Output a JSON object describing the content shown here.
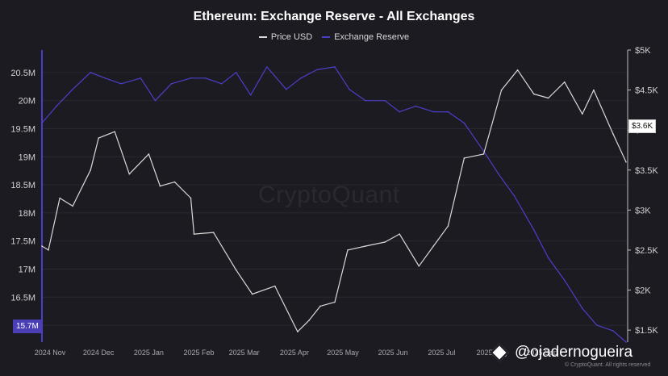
{
  "chart_data": {
    "type": "line",
    "title": "Ethereum: Exchange Reserve - All Exchanges",
    "legend": [
      "Price USD",
      "Exchange Reserve"
    ],
    "legend_placement": "top-center",
    "grid": true,
    "colors": {
      "price": "#d9d9d9",
      "reserve": "#4b3fc9",
      "background": "#1d1b22"
    },
    "x_ticks": [
      "2024 Nov",
      "2024 Dec",
      "2025 Jan",
      "2025 Feb",
      "2025 Mar",
      "2025 Apr",
      "2025 May",
      "2025 Jun",
      "2025 Jul",
      "2025 Aug",
      "2025 Sep"
    ],
    "y_left": {
      "label": "",
      "range": [
        15.7,
        20.9
      ],
      "ticks": [
        "20.5M",
        "20M",
        "19.5M",
        "19M",
        "18.5M",
        "18M",
        "17.5M",
        "17M",
        "16.5M",
        "16M"
      ],
      "tick_values": [
        20.5,
        20,
        19.5,
        19,
        18.5,
        18,
        17.5,
        17,
        16.5,
        16
      ]
    },
    "y_right": {
      "label": "",
      "range": [
        1350,
        5000
      ],
      "ticks": [
        "$5K",
        "$4.5K",
        "$4K",
        "$3.5K",
        "$3K",
        "$2.5K",
        "$2K",
        "$1.5K"
      ],
      "tick_values": [
        5000,
        4500,
        4000,
        3500,
        3000,
        2500,
        2000,
        1500
      ]
    },
    "last_value_tags": {
      "reserve": "15.7M",
      "price": "$3.6K"
    },
    "series": [
      {
        "name": "Exchange Reserve",
        "axis": "left",
        "unit": "M ETH",
        "x": [
          "2024-11-01",
          "2024-11-10",
          "2024-11-20",
          "2024-12-01",
          "2024-12-10",
          "2024-12-20",
          "2025-01-01",
          "2025-01-10",
          "2025-01-20",
          "2025-02-01",
          "2025-02-10",
          "2025-02-20",
          "2025-03-01",
          "2025-03-10",
          "2025-03-20",
          "2025-04-01",
          "2025-04-10",
          "2025-04-20",
          "2025-05-01",
          "2025-05-10",
          "2025-05-20",
          "2025-06-01",
          "2025-06-10",
          "2025-06-20",
          "2025-07-01",
          "2025-07-10",
          "2025-07-20",
          "2025-08-01",
          "2025-08-10",
          "2025-08-20",
          "2025-09-01",
          "2025-09-10",
          "2025-09-20",
          "2025-10-01",
          "2025-10-10",
          "2025-10-20",
          "2025-10-28"
        ],
        "y": [
          19.6,
          19.9,
          20.2,
          20.5,
          20.4,
          20.3,
          20.4,
          20.0,
          20.3,
          20.4,
          20.4,
          20.3,
          20.5,
          20.1,
          20.6,
          20.2,
          20.4,
          20.55,
          20.6,
          20.2,
          20.0,
          20.0,
          19.8,
          19.9,
          19.8,
          19.8,
          19.6,
          19.1,
          18.7,
          18.3,
          17.7,
          17.2,
          16.8,
          16.3,
          16.0,
          15.9,
          15.7
        ]
      },
      {
        "name": "Price USD",
        "axis": "right",
        "unit": "USD",
        "x": [
          "2024-11-01",
          "2024-11-05",
          "2024-11-12",
          "2024-11-20",
          "2024-12-01",
          "2024-12-06",
          "2024-12-16",
          "2024-12-25",
          "2025-01-06",
          "2025-01-13",
          "2025-01-22",
          "2025-02-01",
          "2025-02-03",
          "2025-02-15",
          "2025-03-01",
          "2025-03-11",
          "2025-03-25",
          "2025-04-08",
          "2025-04-15",
          "2025-04-22",
          "2025-05-01",
          "2025-05-09",
          "2025-05-20",
          "2025-06-01",
          "2025-06-10",
          "2025-06-22",
          "2025-07-01",
          "2025-07-10",
          "2025-07-20",
          "2025-08-01",
          "2025-08-12",
          "2025-08-22",
          "2025-09-01",
          "2025-09-10",
          "2025-09-20",
          "2025-10-01",
          "2025-10-08",
          "2025-10-20",
          "2025-10-28"
        ],
        "y": [
          2550,
          2500,
          3150,
          3050,
          3500,
          3900,
          3980,
          3450,
          3700,
          3300,
          3350,
          3150,
          2700,
          2720,
          2250,
          1950,
          2050,
          1480,
          1620,
          1800,
          1850,
          2500,
          2550,
          2600,
          2700,
          2300,
          2550,
          2800,
          3650,
          3700,
          4500,
          4750,
          4450,
          4400,
          4600,
          4200,
          4500,
          3950,
          3600
        ]
      }
    ]
  },
  "branding": {
    "watermark": "CryptoQuant",
    "handle": "@ojadernogueira",
    "copyright": "© CryptoQuant. All rights reserved"
  }
}
